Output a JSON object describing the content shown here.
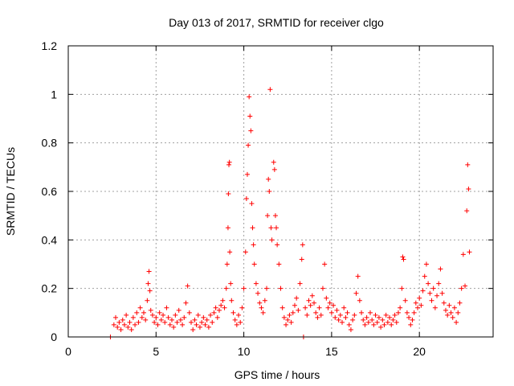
{
  "chart_data": {
    "type": "scatter",
    "title": "Day 013 of 2017, SRMTID for receiver clgo",
    "xlabel": "GPS time / hours",
    "ylabel": "SRMTID / TECUs",
    "xlim": [
      0,
      24.2
    ],
    "ylim": [
      0,
      1.2
    ],
    "xticks": [
      0,
      5,
      10,
      15,
      20
    ],
    "xtick_labels": [
      "0",
      "5",
      "10",
      "15",
      "20"
    ],
    "yticks": [
      0,
      0.2,
      0.4,
      0.6,
      0.8,
      1,
      1.2
    ],
    "ytick_labels": [
      "0",
      "0.2",
      "0.4",
      "0.6",
      "0.8",
      "1",
      "1.2"
    ],
    "grid": true,
    "marker": "+",
    "color": "#ff0000",
    "series": [
      {
        "name": "SRMTID",
        "points": [
          [
            2.4,
            0.0
          ],
          [
            2.6,
            0.05
          ],
          [
            2.7,
            0.08
          ],
          [
            2.8,
            0.04
          ],
          [
            2.9,
            0.06
          ],
          [
            3.0,
            0.03
          ],
          [
            3.1,
            0.07
          ],
          [
            3.2,
            0.05
          ],
          [
            3.3,
            0.09
          ],
          [
            3.4,
            0.04
          ],
          [
            3.5,
            0.06
          ],
          [
            3.6,
            0.03
          ],
          [
            3.7,
            0.08
          ],
          [
            3.8,
            0.05
          ],
          [
            3.9,
            0.1
          ],
          [
            4.0,
            0.06
          ],
          [
            4.1,
            0.12
          ],
          [
            4.2,
            0.08
          ],
          [
            4.3,
            0.1
          ],
          [
            4.4,
            0.07
          ],
          [
            4.5,
            0.15
          ],
          [
            4.55,
            0.22
          ],
          [
            4.6,
            0.27
          ],
          [
            4.65,
            0.19
          ],
          [
            4.7,
            0.11
          ],
          [
            4.8,
            0.09
          ],
          [
            4.9,
            0.06
          ],
          [
            5.0,
            0.08
          ],
          [
            5.1,
            0.05
          ],
          [
            5.2,
            0.1
          ],
          [
            5.3,
            0.07
          ],
          [
            5.4,
            0.09
          ],
          [
            5.5,
            0.06
          ],
          [
            5.6,
            0.12
          ],
          [
            5.7,
            0.08
          ],
          [
            5.8,
            0.05
          ],
          [
            5.9,
            0.07
          ],
          [
            6.0,
            0.04
          ],
          [
            6.1,
            0.09
          ],
          [
            6.2,
            0.06
          ],
          [
            6.3,
            0.11
          ],
          [
            6.4,
            0.07
          ],
          [
            6.5,
            0.05
          ],
          [
            6.6,
            0.08
          ],
          [
            6.7,
            0.14
          ],
          [
            6.8,
            0.21
          ],
          [
            6.9,
            0.1
          ],
          [
            7.0,
            0.06
          ],
          [
            7.1,
            0.03
          ],
          [
            7.2,
            0.07
          ],
          [
            7.3,
            0.05
          ],
          [
            7.4,
            0.09
          ],
          [
            7.5,
            0.04
          ],
          [
            7.6,
            0.06
          ],
          [
            7.7,
            0.08
          ],
          [
            7.8,
            0.05
          ],
          [
            7.9,
            0.07
          ],
          [
            8.0,
            0.04
          ],
          [
            8.1,
            0.09
          ],
          [
            8.2,
            0.06
          ],
          [
            8.3,
            0.1
          ],
          [
            8.4,
            0.12
          ],
          [
            8.5,
            0.08
          ],
          [
            8.6,
            0.11
          ],
          [
            8.7,
            0.13
          ],
          [
            8.8,
            0.15
          ],
          [
            8.9,
            0.12
          ],
          [
            9.0,
            0.2
          ],
          [
            9.05,
            0.3
          ],
          [
            9.1,
            0.45
          ],
          [
            9.12,
            0.59
          ],
          [
            9.15,
            0.71
          ],
          [
            9.18,
            0.72
          ],
          [
            9.2,
            0.35
          ],
          [
            9.25,
            0.22
          ],
          [
            9.3,
            0.15
          ],
          [
            9.4,
            0.1
          ],
          [
            9.5,
            0.07
          ],
          [
            9.6,
            0.05
          ],
          [
            9.7,
            0.09
          ],
          [
            9.8,
            0.06
          ],
          [
            9.9,
            0.12
          ],
          [
            10.0,
            0.2
          ],
          [
            10.1,
            0.35
          ],
          [
            10.15,
            0.57
          ],
          [
            10.2,
            0.67
          ],
          [
            10.25,
            0.79
          ],
          [
            10.3,
            0.99
          ],
          [
            10.35,
            0.91
          ],
          [
            10.4,
            0.85
          ],
          [
            10.45,
            0.55
          ],
          [
            10.5,
            0.45
          ],
          [
            10.55,
            0.38
          ],
          [
            10.6,
            0.3
          ],
          [
            10.7,
            0.22
          ],
          [
            10.8,
            0.18
          ],
          [
            10.9,
            0.14
          ],
          [
            11.0,
            0.12
          ],
          [
            11.1,
            0.1
          ],
          [
            11.2,
            0.15
          ],
          [
            11.3,
            0.2
          ],
          [
            11.35,
            0.5
          ],
          [
            11.4,
            0.65
          ],
          [
            11.45,
            0.6
          ],
          [
            11.5,
            1.02
          ],
          [
            11.55,
            0.45
          ],
          [
            11.6,
            0.4
          ],
          [
            11.7,
            0.72
          ],
          [
            11.75,
            0.69
          ],
          [
            11.8,
            0.5
          ],
          [
            11.85,
            0.45
          ],
          [
            11.9,
            0.38
          ],
          [
            12.0,
            0.3
          ],
          [
            12.1,
            0.2
          ],
          [
            12.2,
            0.12
          ],
          [
            12.3,
            0.08
          ],
          [
            12.4,
            0.05
          ],
          [
            12.5,
            0.07
          ],
          [
            12.6,
            0.09
          ],
          [
            12.7,
            0.06
          ],
          [
            12.8,
            0.1
          ],
          [
            12.9,
            0.13
          ],
          [
            13.0,
            0.16
          ],
          [
            13.1,
            0.11
          ],
          [
            13.2,
            0.22
          ],
          [
            13.3,
            0.32
          ],
          [
            13.35,
            0.38
          ],
          [
            13.4,
            0.0
          ],
          [
            13.5,
            0.12
          ],
          [
            13.6,
            0.09
          ],
          [
            13.7,
            0.15
          ],
          [
            13.8,
            0.13
          ],
          [
            13.9,
            0.17
          ],
          [
            14.0,
            0.14
          ],
          [
            14.1,
            0.1
          ],
          [
            14.2,
            0.08
          ],
          [
            14.3,
            0.12
          ],
          [
            14.4,
            0.09
          ],
          [
            14.5,
            0.2
          ],
          [
            14.6,
            0.3
          ],
          [
            14.7,
            0.16
          ],
          [
            14.8,
            0.12
          ],
          [
            14.9,
            0.14
          ],
          [
            15.0,
            0.1
          ],
          [
            15.1,
            0.13
          ],
          [
            15.2,
            0.08
          ],
          [
            15.3,
            0.11
          ],
          [
            15.4,
            0.07
          ],
          [
            15.5,
            0.09
          ],
          [
            15.6,
            0.06
          ],
          [
            15.7,
            0.12
          ],
          [
            15.8,
            0.08
          ],
          [
            15.9,
            0.1
          ],
          [
            16.0,
            0.05
          ],
          [
            16.1,
            0.03
          ],
          [
            16.2,
            0.07
          ],
          [
            16.3,
            0.09
          ],
          [
            16.4,
            0.18
          ],
          [
            16.5,
            0.25
          ],
          [
            16.6,
            0.15
          ],
          [
            16.7,
            0.1
          ],
          [
            16.8,
            0.07
          ],
          [
            16.9,
            0.05
          ],
          [
            17.0,
            0.08
          ],
          [
            17.1,
            0.06
          ],
          [
            17.2,
            0.1
          ],
          [
            17.3,
            0.07
          ],
          [
            17.4,
            0.05
          ],
          [
            17.5,
            0.09
          ],
          [
            17.6,
            0.06
          ],
          [
            17.7,
            0.08
          ],
          [
            17.8,
            0.04
          ],
          [
            17.9,
            0.07
          ],
          [
            18.0,
            0.05
          ],
          [
            18.1,
            0.09
          ],
          [
            18.2,
            0.06
          ],
          [
            18.3,
            0.08
          ],
          [
            18.4,
            0.05
          ],
          [
            18.5,
            0.07
          ],
          [
            18.6,
            0.09
          ],
          [
            18.7,
            0.06
          ],
          [
            18.8,
            0.1
          ],
          [
            18.9,
            0.12
          ],
          [
            19.0,
            0.2
          ],
          [
            19.05,
            0.33
          ],
          [
            19.1,
            0.32
          ],
          [
            19.2,
            0.15
          ],
          [
            19.3,
            0.1
          ],
          [
            19.4,
            0.08
          ],
          [
            19.5,
            0.05
          ],
          [
            19.6,
            0.07
          ],
          [
            19.7,
            0.1
          ],
          [
            19.8,
            0.14
          ],
          [
            19.9,
            0.12
          ],
          [
            20.0,
            0.16
          ],
          [
            20.1,
            0.13
          ],
          [
            20.2,
            0.19
          ],
          [
            20.3,
            0.25
          ],
          [
            20.4,
            0.3
          ],
          [
            20.5,
            0.22
          ],
          [
            20.6,
            0.18
          ],
          [
            20.7,
            0.15
          ],
          [
            20.8,
            0.2
          ],
          [
            20.9,
            0.12
          ],
          [
            21.0,
            0.17
          ],
          [
            21.1,
            0.22
          ],
          [
            21.2,
            0.28
          ],
          [
            21.3,
            0.18
          ],
          [
            21.4,
            0.14
          ],
          [
            21.5,
            0.11
          ],
          [
            21.6,
            0.09
          ],
          [
            21.7,
            0.13
          ],
          [
            21.8,
            0.1
          ],
          [
            21.9,
            0.08
          ],
          [
            22.0,
            0.12
          ],
          [
            22.1,
            0.06
          ],
          [
            22.2,
            0.1
          ],
          [
            22.3,
            0.14
          ],
          [
            22.4,
            0.2
          ],
          [
            22.5,
            0.34
          ],
          [
            22.6,
            0.21
          ],
          [
            22.7,
            0.52
          ],
          [
            22.75,
            0.71
          ],
          [
            22.8,
            0.61
          ],
          [
            22.85,
            0.35
          ]
        ]
      }
    ]
  }
}
